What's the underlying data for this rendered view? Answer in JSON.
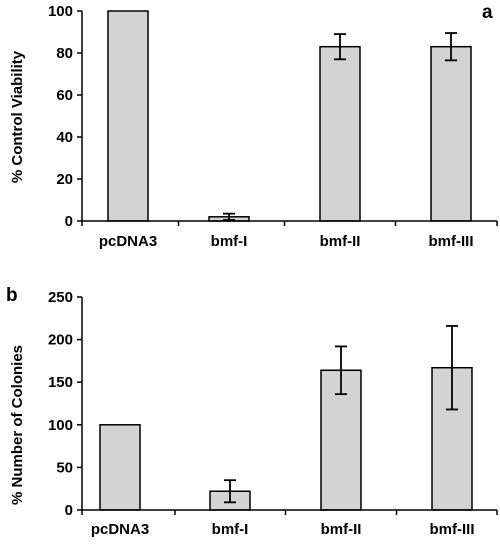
{
  "chart_data": [
    {
      "type": "bar",
      "panel": "a",
      "categories": [
        "pcDNA3",
        "bmf-I",
        "bmf-II",
        "bmf-III"
      ],
      "values": [
        100,
        2,
        83,
        83
      ],
      "errors": [
        0,
        1.5,
        6,
        6.5
      ],
      "ylabel": "% Control Viability",
      "ylim": [
        0,
        100
      ],
      "yticks": [
        "0",
        "20",
        "40",
        "60",
        "80",
        "100"
      ],
      "grid": false,
      "bar_color": "#d3d3d3"
    },
    {
      "type": "bar",
      "panel": "b",
      "categories": [
        "pcDNA3",
        "bmf-I",
        "bmf-II",
        "bmf-III"
      ],
      "values": [
        100,
        22,
        164,
        167
      ],
      "errors": [
        0,
        13,
        28,
        49
      ],
      "ylabel": "% Number of Colonies",
      "ylim": [
        0,
        250
      ],
      "yticks": [
        "0",
        "50",
        "100",
        "150",
        "200",
        "250"
      ],
      "grid": false,
      "bar_color": "#d3d3d3"
    }
  ]
}
